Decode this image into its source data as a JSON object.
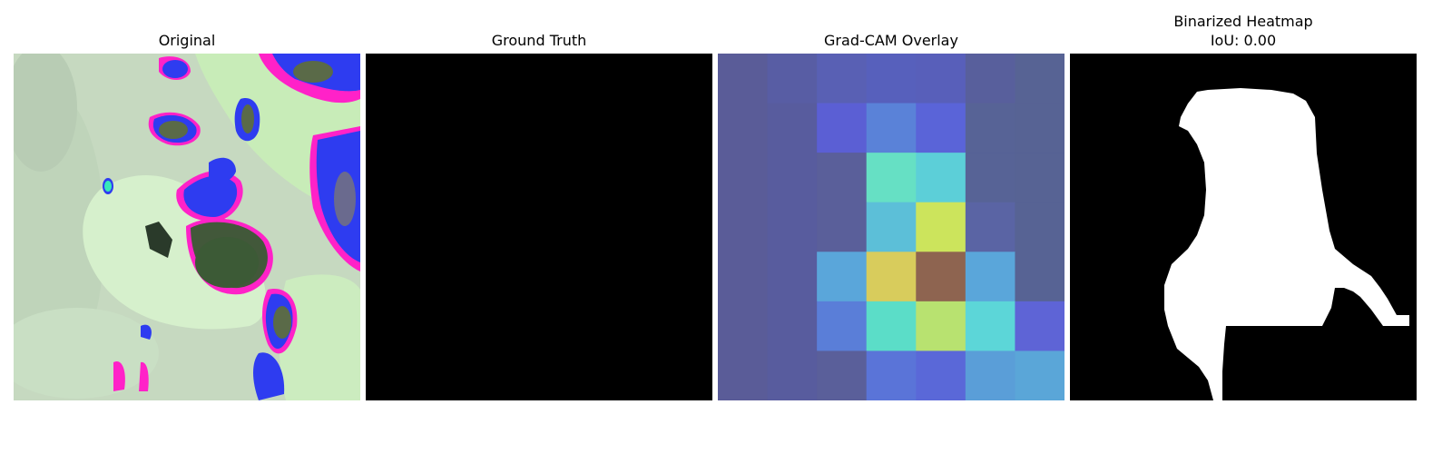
{
  "panels": [
    {
      "title": "Original"
    },
    {
      "title": "Ground Truth"
    },
    {
      "title": "Grad-CAM Overlay"
    },
    {
      "title": "Binarized Heatmap",
      "subtitle": "IoU: 0.00"
    }
  ],
  "gradcam": {
    "grid_rows": 7,
    "grid_cols": 7,
    "cells": [
      [
        "#5a5c98",
        "#585da4",
        "#5960b4",
        "#5760bc",
        "#585fba",
        "#585f9c",
        "#576394"
      ],
      [
        "#5a5c98",
        "#585c9e",
        "#5b5fd4",
        "#5a82d8",
        "#5a64d8",
        "#576396",
        "#576394"
      ],
      [
        "#5a5c98",
        "#585c9e",
        "#5a5f9a",
        "#66e0c4",
        "#5ccfd8",
        "#576396",
        "#576394"
      ],
      [
        "#5a5c98",
        "#585c9e",
        "#5a5f9a",
        "#5cbfd8",
        "#cce45c",
        "#5a64a4",
        "#576394"
      ],
      [
        "#5a5c98",
        "#585c9e",
        "#5aa6da",
        "#d8cc5c",
        "#8e6450",
        "#5aa6da",
        "#576394"
      ],
      [
        "#5a5c98",
        "#585c9e",
        "#5a7ed8",
        "#5bddc8",
        "#b8e270",
        "#5cd6d8",
        "#5e64d6"
      ],
      [
        "#5a5c98",
        "#585c9e",
        "#5a5f9a",
        "#5a74d8",
        "#5a68d8",
        "#5a9ed8",
        "#5aa6d8"
      ]
    ]
  }
}
